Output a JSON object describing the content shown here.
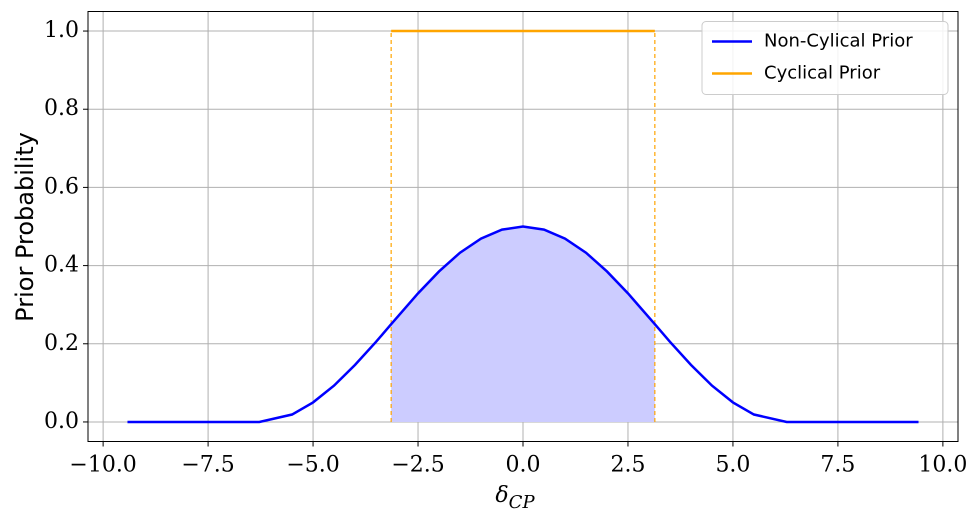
{
  "chart_data": {
    "type": "line",
    "ylabel": "Prior Probability",
    "xlabel": "δ",
    "xlabel_subscript": "CP",
    "xlim": [
      -10.36,
      10.36
    ],
    "ylim": [
      -0.05,
      1.05
    ],
    "xticks": [
      {
        "value": -10,
        "label": "−10.0"
      },
      {
        "value": -7.5,
        "label": "−7.5"
      },
      {
        "value": -5,
        "label": "−5.0"
      },
      {
        "value": -2.5,
        "label": "−2.5"
      },
      {
        "value": 0,
        "label": "0.0"
      },
      {
        "value": 2.5,
        "label": "2.5"
      },
      {
        "value": 5,
        "label": "5.0"
      },
      {
        "value": 7.5,
        "label": "7.5"
      },
      {
        "value": 10,
        "label": "10.0"
      }
    ],
    "yticks": [
      {
        "value": 0,
        "label": "0.0"
      },
      0.2,
      0.4,
      0.6,
      0.8,
      {
        "value": 1,
        "label": "1.0"
      }
    ],
    "grid": true,
    "legend": "upper right",
    "series": [
      {
        "name": "Non-Cylical Prior",
        "color": "#0000ff",
        "fill": "#ccccff",
        "fill_between": [
          -3.14,
          3.14
        ],
        "x": [
          -9.42,
          -6.28,
          -5.5,
          -5.0,
          -4.5,
          -4.0,
          -3.5,
          -3.14,
          -2.5,
          -2.0,
          -1.5,
          -1.0,
          -0.5,
          0,
          0.5,
          1.0,
          1.5,
          2.0,
          2.5,
          3.14,
          3.5,
          4.0,
          4.5,
          5.0,
          5.5,
          6.28,
          9.42
        ],
        "values": [
          0,
          0,
          0.019,
          0.05,
          0.093,
          0.146,
          0.205,
          0.25,
          0.329,
          0.385,
          0.433,
          0.469,
          0.492,
          0.5,
          0.492,
          0.469,
          0.433,
          0.385,
          0.329,
          0.25,
          0.205,
          0.146,
          0.093,
          0.05,
          0.019,
          0,
          0
        ]
      },
      {
        "name": "Cyclical Prior",
        "color": "#ffa500",
        "dashed_edges": true,
        "x": [
          -3.14,
          3.14
        ],
        "values": [
          1,
          1
        ]
      }
    ]
  }
}
